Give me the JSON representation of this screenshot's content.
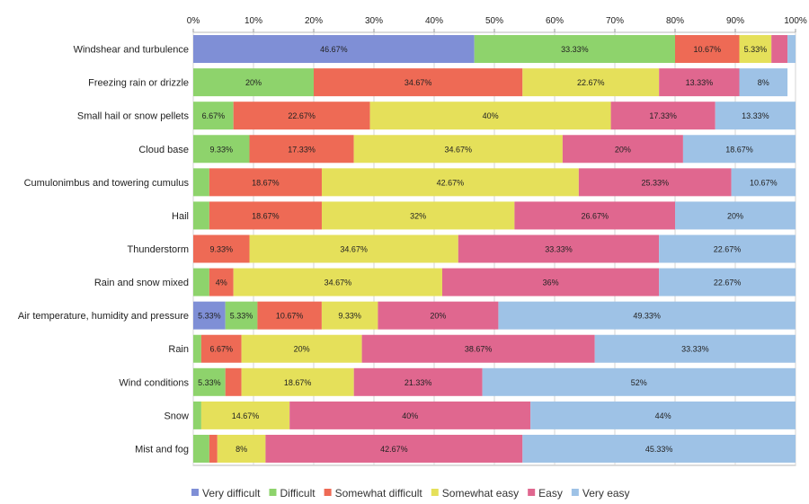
{
  "chart_data": {
    "type": "bar",
    "orientation": "horizontal",
    "stacked": true,
    "stacked_percent": true,
    "title": "",
    "xlabel": "",
    "ylabel": "",
    "xlim": [
      0,
      100
    ],
    "x_ticks": [
      "0%",
      "10%",
      "20%",
      "30%",
      "40%",
      "50%",
      "60%",
      "70%",
      "80%",
      "90%",
      "100%"
    ],
    "legend_position": "bottom",
    "grid": true,
    "categories": [
      "Windshear and turbulence",
      "Freezing rain or drizzle",
      "Small hail or snow pellets",
      "Cloud base",
      "Cumulonimbus and towering cumulus",
      "Hail",
      "Thunderstorm",
      "Rain and snow mixed",
      "Air temperature, humidity and pressure",
      "Rain",
      "Wind conditions",
      "Snow",
      "Mist and fog"
    ],
    "series": [
      {
        "name": "Very difficult",
        "color": "#7f8fd6",
        "values": [
          46.67,
          0,
          0,
          0,
          0,
          0,
          0,
          0,
          5.33,
          0,
          0,
          0,
          0
        ]
      },
      {
        "name": "Difficult",
        "color": "#8ed36c",
        "values": [
          33.33,
          20,
          6.67,
          9.33,
          2.67,
          2.67,
          0,
          2.67,
          5.33,
          1.33,
          5.33,
          1.33,
          2.67
        ]
      },
      {
        "name": "Somewhat difficult",
        "color": "#ee6a55",
        "values": [
          10.67,
          34.67,
          22.67,
          17.33,
          18.67,
          18.67,
          9.33,
          4,
          10.67,
          6.67,
          2.67,
          0,
          1.33
        ]
      },
      {
        "name": "Somewhat easy",
        "color": "#e5e05a",
        "values": [
          5.33,
          22.67,
          40,
          34.67,
          42.67,
          32,
          34.67,
          34.67,
          9.33,
          20,
          18.67,
          14.67,
          8
        ]
      },
      {
        "name": "Easy",
        "color": "#e0678f",
        "values": [
          2.67,
          13.33,
          17.33,
          20,
          25.33,
          26.67,
          33.33,
          36,
          20,
          38.67,
          21.33,
          40,
          42.67
        ]
      },
      {
        "name": "Very easy",
        "color": "#9ec2e6",
        "values": [
          1.33,
          8,
          13.33,
          18.67,
          10.67,
          20,
          22.67,
          22.67,
          49.33,
          33.33,
          52,
          44,
          45.33
        ]
      }
    ]
  }
}
